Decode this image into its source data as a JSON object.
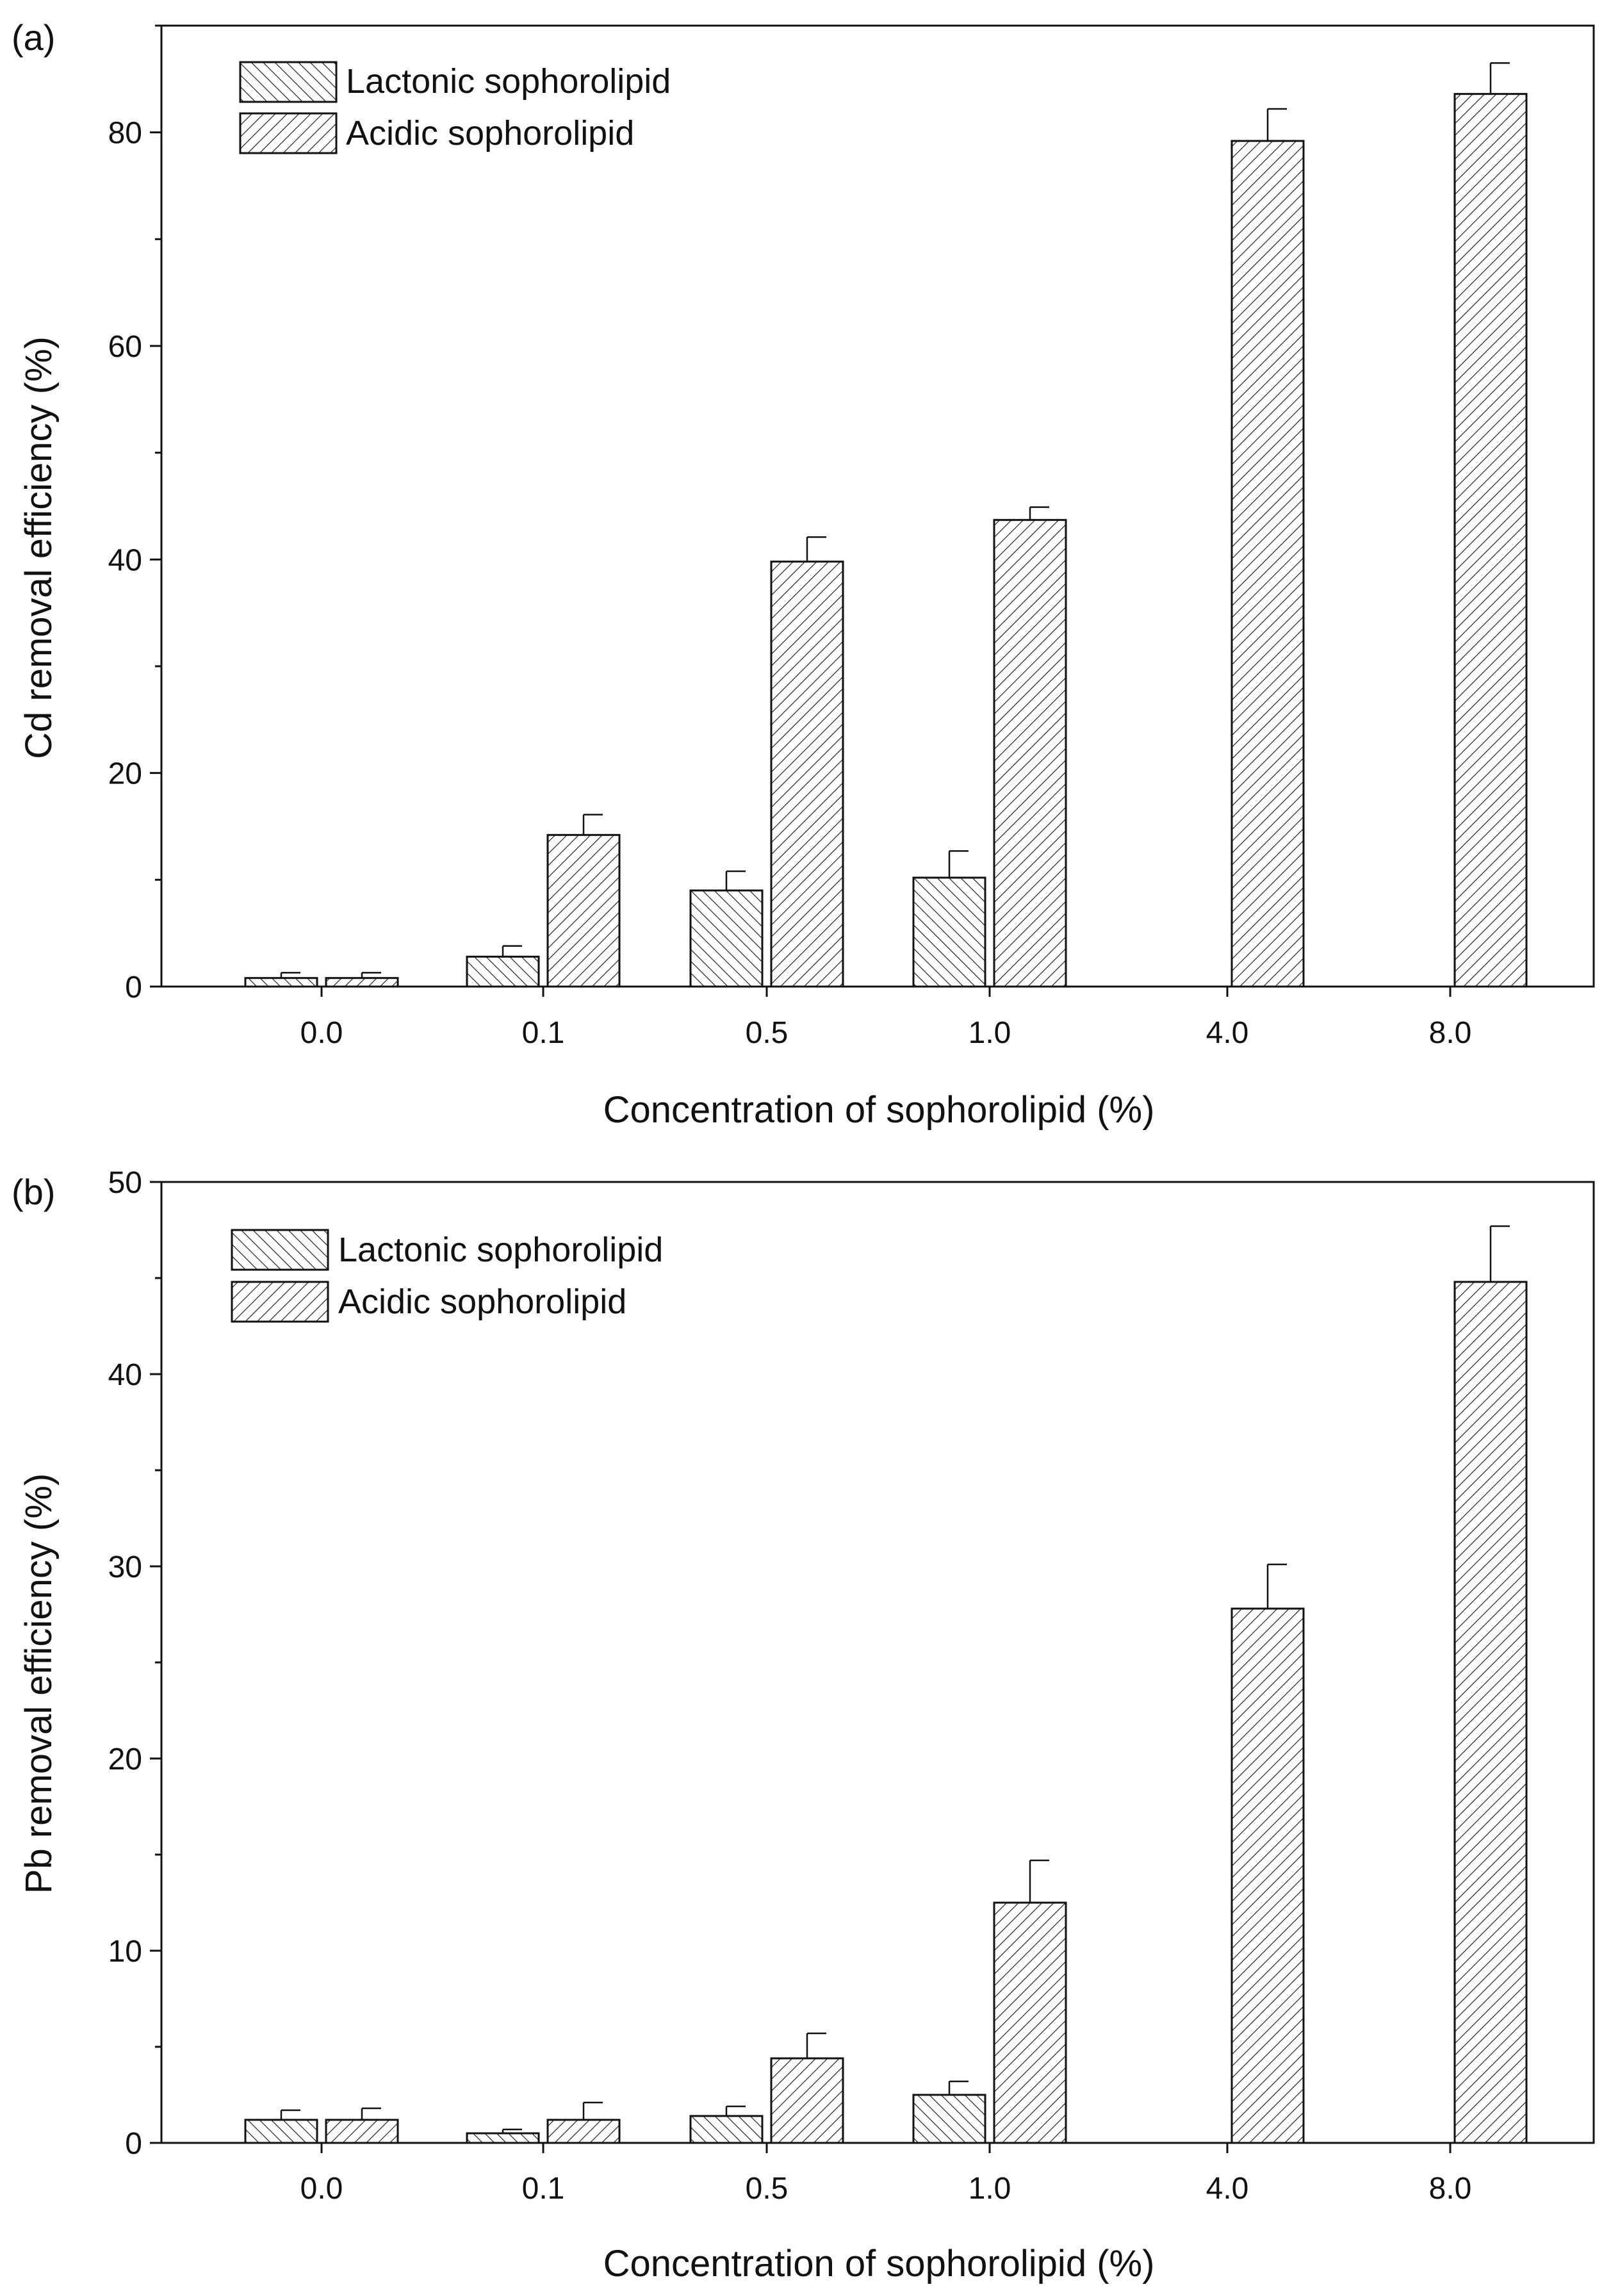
{
  "colors": {
    "ink": "#111111",
    "background": "#ffffff"
  },
  "chart_data": [
    {
      "type": "bar",
      "panel_label": "(a)",
      "categories": [
        "0.0",
        "0.1",
        "0.5",
        "1.0",
        "4.0",
        "8.0"
      ],
      "xlabel": "Concentration of sophorolipid (%)",
      "ylabel": "Cd removal efficiency (%)",
      "ylim": [
        0,
        90
      ],
      "yticks": [
        "0",
        "20",
        "40",
        "60",
        "80"
      ],
      "legend_position": "top-left",
      "series": [
        {
          "name": "Lactonic sophorolipid",
          "pattern": "back-diagonal-hatch",
          "values": [
            0.8,
            2.8,
            9.0,
            10.2,
            null,
            null
          ],
          "errors": [
            0.5,
            1.0,
            1.8,
            2.5,
            null,
            null
          ]
        },
        {
          "name": "Acidic sophorolipid",
          "pattern": "forward-diagonal-hatch",
          "values": [
            0.8,
            14.2,
            39.8,
            43.7,
            79.2,
            83.6
          ],
          "errors": [
            0.5,
            1.9,
            2.3,
            1.2,
            3.0,
            2.9
          ]
        }
      ]
    },
    {
      "type": "bar",
      "panel_label": "(b)",
      "categories": [
        "0.0",
        "0.1",
        "0.5",
        "1.0",
        "4.0",
        "8.0"
      ],
      "xlabel": "Concentration of sophorolipid (%)",
      "ylabel": "Pb removal efficiency (%)",
      "ylim": [
        0,
        50
      ],
      "yticks": [
        "0",
        "10",
        "20",
        "30",
        "40",
        "50"
      ],
      "legend_position": "top-left",
      "series": [
        {
          "name": "Lactonic sophorolipid",
          "pattern": "back-diagonal-hatch",
          "values": [
            1.2,
            0.5,
            1.4,
            2.5,
            null,
            null
          ],
          "errors": [
            0.5,
            0.2,
            0.5,
            0.7,
            null,
            null
          ]
        },
        {
          "name": "Acidic sophorolipid",
          "pattern": "forward-diagonal-hatch",
          "values": [
            1.2,
            1.2,
            4.4,
            12.5,
            27.8,
            44.8
          ],
          "errors": [
            0.6,
            0.9,
            1.3,
            2.2,
            2.3,
            2.9
          ]
        }
      ]
    }
  ]
}
